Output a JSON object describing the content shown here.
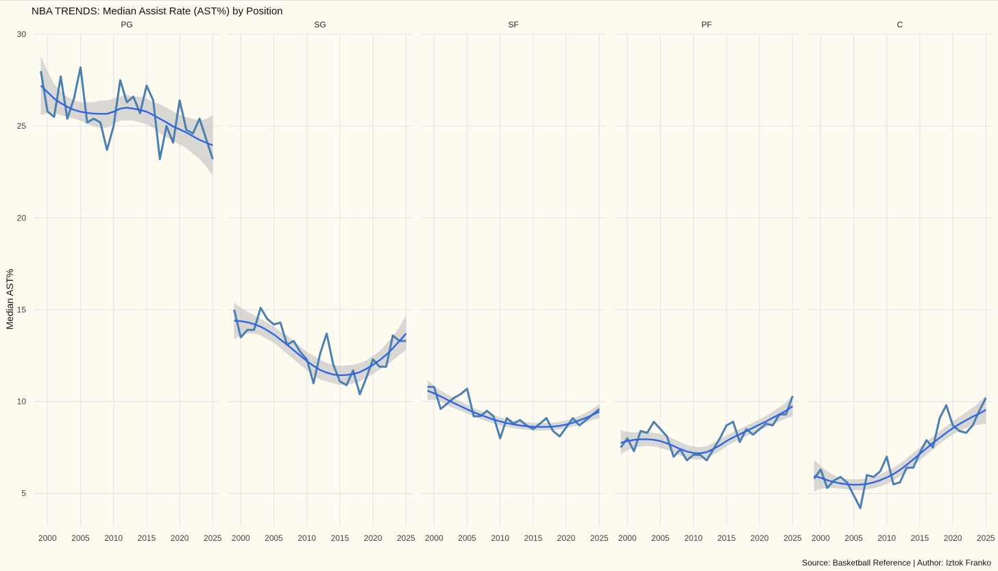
{
  "title": "NBA TRENDS: Median Assist Rate (AST%) by Position",
  "caption": "Source: Basketball Reference | Author: Iztok Franko",
  "colors": {
    "background": "#FDFAF0",
    "grid": "#E6E6EC",
    "line": "#4A7FB0",
    "smooth": "#2F66E0",
    "band": "#C8C8C8"
  },
  "chart_data": {
    "type": "line",
    "title": "NBA TRENDS: Median Assist Rate (AST%) by Position",
    "xlabel": "",
    "ylabel": "Median AST%",
    "xlim": [
      1998,
      2026
    ],
    "ylim": [
      3.2,
      30
    ],
    "x_ticks": [
      2000,
      2005,
      2010,
      2015,
      2020,
      2025
    ],
    "y_ticks": [
      5,
      10,
      15,
      20,
      25,
      30
    ],
    "x": [
      1999,
      2000,
      2001,
      2002,
      2003,
      2004,
      2005,
      2006,
      2007,
      2008,
      2009,
      2010,
      2011,
      2012,
      2013,
      2014,
      2015,
      2016,
      2017,
      2018,
      2019,
      2020,
      2021,
      2022,
      2023,
      2024,
      2025
    ],
    "panels": [
      {
        "name": "PG",
        "values": [
          28.0,
          25.8,
          25.5,
          27.7,
          25.4,
          26.5,
          28.2,
          25.2,
          25.4,
          25.2,
          23.7,
          25.0,
          27.5,
          26.3,
          26.6,
          25.7,
          27.2,
          26.4,
          23.2,
          25.0,
          24.1,
          26.4,
          24.8,
          24.6,
          25.4,
          24.3,
          23.2
        ],
        "smooth": [
          27.2,
          26.85,
          26.5,
          26.25,
          26.05,
          25.88,
          25.78,
          25.72,
          25.68,
          25.67,
          25.67,
          25.78,
          25.95,
          26.0,
          25.95,
          25.88,
          25.78,
          25.6,
          25.4,
          25.2,
          24.98,
          24.82,
          24.65,
          24.45,
          24.25,
          24.1,
          23.95
        ],
        "band_lo": [
          25.6,
          25.7,
          25.7,
          25.6,
          25.5,
          25.4,
          25.3,
          25.1,
          25.0,
          24.9,
          24.9,
          25.1,
          25.3,
          25.3,
          25.3,
          25.2,
          25.1,
          24.9,
          24.6,
          24.4,
          24.2,
          24.0,
          23.8,
          23.5,
          23.2,
          22.8,
          22.3
        ],
        "band_hi": [
          28.8,
          28.0,
          27.3,
          26.9,
          26.6,
          26.4,
          26.3,
          26.3,
          26.3,
          26.4,
          26.4,
          26.5,
          26.6,
          26.7,
          26.6,
          26.6,
          26.5,
          26.3,
          26.2,
          26.0,
          25.8,
          25.6,
          25.5,
          25.4,
          25.3,
          25.4,
          25.6
        ]
      },
      {
        "name": "SG",
        "values": [
          15.0,
          13.5,
          13.9,
          13.9,
          15.1,
          14.5,
          14.2,
          14.3,
          13.1,
          13.3,
          12.7,
          12.3,
          11.0,
          12.6,
          13.7,
          12.0,
          11.1,
          10.9,
          11.7,
          10.4,
          11.3,
          12.3,
          11.9,
          11.9,
          13.6,
          13.3,
          13.3
        ],
        "smooth": [
          14.4,
          14.38,
          14.32,
          14.22,
          14.08,
          13.88,
          13.65,
          13.38,
          13.1,
          12.8,
          12.5,
          12.2,
          11.95,
          11.72,
          11.58,
          11.47,
          11.43,
          11.45,
          11.5,
          11.6,
          11.78,
          12.0,
          12.25,
          12.55,
          12.9,
          13.3,
          13.7
        ],
        "band_lo": [
          13.4,
          13.6,
          13.7,
          13.7,
          13.6,
          13.4,
          13.2,
          12.9,
          12.6,
          12.3,
          12.0,
          11.7,
          11.4,
          11.2,
          11.1,
          11.0,
          10.9,
          10.9,
          11.0,
          11.1,
          11.3,
          11.5,
          11.75,
          11.95,
          12.25,
          12.55,
          12.8
        ],
        "band_hi": [
          15.4,
          15.1,
          14.9,
          14.7,
          14.5,
          14.3,
          14.1,
          13.8,
          13.6,
          13.3,
          13.0,
          12.7,
          12.5,
          12.3,
          12.1,
          12.0,
          11.95,
          11.97,
          12.0,
          12.1,
          12.25,
          12.5,
          12.75,
          13.15,
          13.55,
          14.05,
          14.7
        ]
      },
      {
        "name": "SF",
        "values": [
          10.8,
          10.8,
          9.6,
          9.9,
          10.2,
          10.4,
          10.7,
          9.2,
          9.2,
          9.5,
          9.2,
          8.0,
          9.1,
          8.8,
          9.0,
          8.7,
          8.5,
          8.8,
          9.1,
          8.4,
          8.1,
          8.6,
          9.1,
          8.7,
          9.0,
          9.3,
          9.6
        ],
        "smooth": [
          10.6,
          10.45,
          10.28,
          10.1,
          9.92,
          9.75,
          9.58,
          9.42,
          9.28,
          9.15,
          9.02,
          8.92,
          8.83,
          8.76,
          8.7,
          8.66,
          8.63,
          8.62,
          8.62,
          8.64,
          8.68,
          8.75,
          8.85,
          8.98,
          9.12,
          9.28,
          9.45
        ],
        "band_lo": [
          10.1,
          10.1,
          10.0,
          9.8,
          9.65,
          9.5,
          9.35,
          9.2,
          9.05,
          8.92,
          8.8,
          8.7,
          8.62,
          8.55,
          8.5,
          8.46,
          8.43,
          8.42,
          8.43,
          8.44,
          8.48,
          8.55,
          8.64,
          8.75,
          8.87,
          9.0,
          9.1
        ],
        "band_hi": [
          11.2,
          10.85,
          10.6,
          10.4,
          10.2,
          10.0,
          9.82,
          9.65,
          9.5,
          9.38,
          9.25,
          9.15,
          9.05,
          8.98,
          8.92,
          8.87,
          8.84,
          8.83,
          8.83,
          8.85,
          8.9,
          8.98,
          9.08,
          9.23,
          9.4,
          9.6,
          9.85
        ]
      },
      {
        "name": "PF",
        "values": [
          7.5,
          8.0,
          7.3,
          8.4,
          8.3,
          8.9,
          8.5,
          8.1,
          7.0,
          7.4,
          6.8,
          7.1,
          7.1,
          6.8,
          7.4,
          8.0,
          8.7,
          8.9,
          7.8,
          8.5,
          8.2,
          8.5,
          8.8,
          8.7,
          9.3,
          9.3,
          10.3
        ],
        "smooth": [
          7.75,
          7.85,
          7.92,
          7.95,
          7.95,
          7.92,
          7.85,
          7.73,
          7.58,
          7.42,
          7.28,
          7.2,
          7.18,
          7.25,
          7.42,
          7.62,
          7.85,
          8.05,
          8.22,
          8.4,
          8.57,
          8.75,
          8.92,
          9.12,
          9.3,
          9.5,
          9.75
        ],
        "band_lo": [
          7.15,
          7.35,
          7.5,
          7.55,
          7.58,
          7.55,
          7.48,
          7.37,
          7.22,
          7.07,
          6.93,
          6.85,
          6.85,
          6.93,
          7.1,
          7.32,
          7.55,
          7.77,
          7.95,
          8.12,
          8.28,
          8.45,
          8.6,
          8.78,
          8.92,
          9.08,
          9.2
        ],
        "band_hi": [
          8.45,
          8.35,
          8.32,
          8.35,
          8.33,
          8.3,
          8.24,
          8.12,
          7.96,
          7.8,
          7.64,
          7.55,
          7.52,
          7.58,
          7.75,
          7.94,
          8.16,
          8.35,
          8.5,
          8.68,
          8.85,
          9.03,
          9.23,
          9.45,
          9.7,
          9.95,
          10.35
        ]
      },
      {
        "name": "C",
        "values": [
          5.8,
          6.3,
          5.3,
          5.7,
          5.9,
          5.6,
          4.9,
          4.2,
          6.0,
          5.9,
          6.2,
          7.0,
          5.5,
          5.6,
          6.4,
          6.4,
          7.2,
          7.9,
          7.5,
          9.1,
          9.8,
          8.7,
          8.4,
          8.3,
          8.7,
          9.5,
          10.2
        ],
        "smooth": [
          5.95,
          5.85,
          5.72,
          5.62,
          5.55,
          5.5,
          5.47,
          5.48,
          5.52,
          5.6,
          5.72,
          5.87,
          6.05,
          6.28,
          6.55,
          6.85,
          7.15,
          7.45,
          7.75,
          8.03,
          8.3,
          8.55,
          8.78,
          8.98,
          9.18,
          9.35,
          9.55
        ],
        "band_lo": [
          5.1,
          5.25,
          5.3,
          5.3,
          5.26,
          5.22,
          5.18,
          5.18,
          5.22,
          5.28,
          5.38,
          5.52,
          5.7,
          5.93,
          6.2,
          6.5,
          6.8,
          7.1,
          7.4,
          7.7,
          7.96,
          8.2,
          8.4,
          8.55,
          8.68,
          8.75,
          8.8
        ],
        "band_hi": [
          6.85,
          6.5,
          6.2,
          5.98,
          5.85,
          5.78,
          5.76,
          5.78,
          5.82,
          5.9,
          6.04,
          6.2,
          6.4,
          6.62,
          6.9,
          7.2,
          7.5,
          7.8,
          8.1,
          8.38,
          8.65,
          8.92,
          9.18,
          9.42,
          9.68,
          9.97,
          10.35
        ]
      }
    ]
  }
}
